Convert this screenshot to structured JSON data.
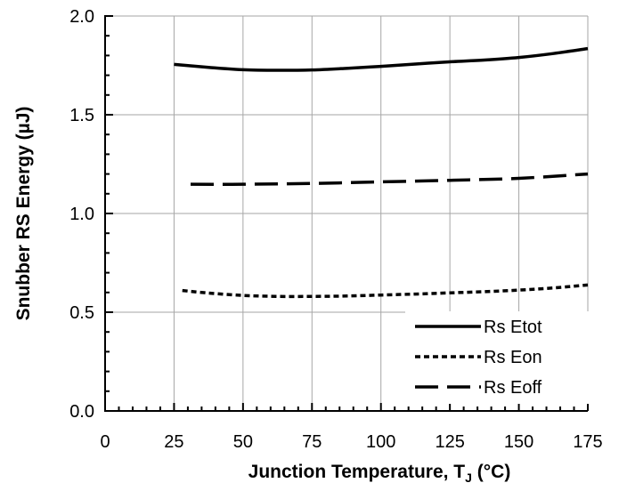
{
  "chart_data": {
    "type": "line",
    "xlabel": "Junction Temperature, T",
    "xlabel_subscript": "J",
    "xlabel_suffix": " (°C)",
    "ylabel": "Snubber RS Energy (µJ)",
    "xlim": [
      0,
      175
    ],
    "ylim": [
      0.0,
      2.0
    ],
    "x_ticks": [
      0,
      25,
      50,
      75,
      100,
      125,
      150,
      175
    ],
    "y_ticks": [
      0.0,
      0.5,
      1.0,
      1.5,
      2.0
    ],
    "x_tick_labels": [
      "0",
      "25",
      "50",
      "75",
      "100",
      "125",
      "150",
      "175"
    ],
    "y_tick_labels": [
      "0.0",
      "0.5",
      "1.0",
      "1.5",
      "2.0"
    ],
    "grid": true,
    "legend_position": "bottom-right",
    "series": [
      {
        "name": "Rs Etot",
        "style": "solid",
        "x": [
          25,
          37.5,
          50,
          62.5,
          75,
          87.5,
          100,
          112.5,
          125,
          137.5,
          150,
          162.5,
          175
        ],
        "y": [
          1.755,
          1.74,
          1.728,
          1.725,
          1.727,
          1.735,
          1.745,
          1.757,
          1.768,
          1.777,
          1.79,
          1.81,
          1.835
        ]
      },
      {
        "name": "Rs Eon",
        "style": "dotted",
        "x": [
          28,
          37.5,
          50,
          62.5,
          75,
          87.5,
          100,
          112.5,
          125,
          137.5,
          150,
          162.5,
          175
        ],
        "y": [
          0.61,
          0.597,
          0.585,
          0.58,
          0.58,
          0.582,
          0.587,
          0.592,
          0.598,
          0.604,
          0.612,
          0.623,
          0.638
        ]
      },
      {
        "name": "Rs Eoff",
        "style": "dashed",
        "x": [
          31,
          50,
          75,
          100,
          125,
          150,
          175
        ],
        "y": [
          1.148,
          1.148,
          1.152,
          1.16,
          1.168,
          1.178,
          1.2
        ]
      }
    ]
  }
}
